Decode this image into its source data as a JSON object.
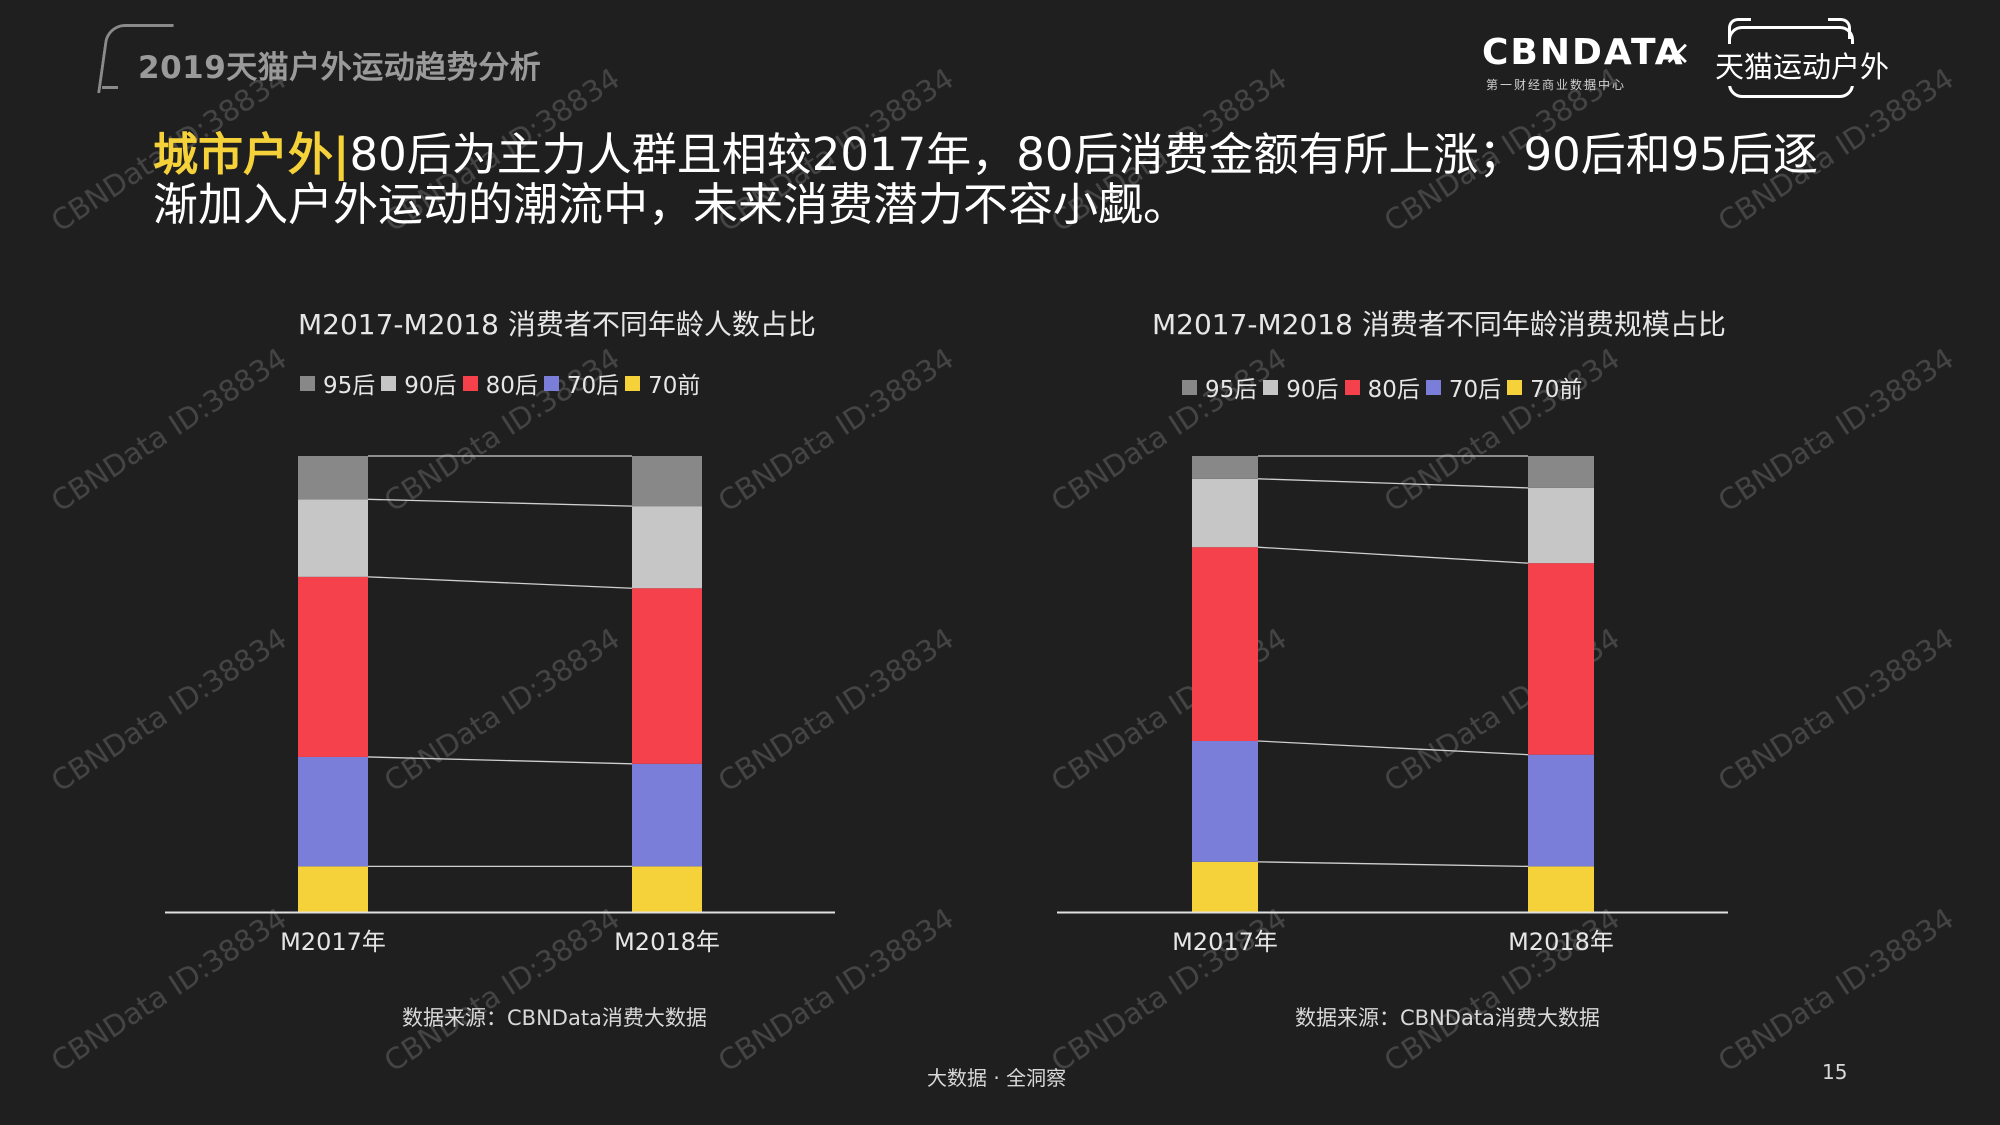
{
  "header": {
    "report_title": "2019天猫户外运动趋势分析",
    "brand_cbn": "CBNDATA",
    "brand_cbn_sub": "第一财经商业数据中心",
    "brand_x": "×",
    "brand_tmall": "天猫运动户外"
  },
  "headline": {
    "highlight": "城市户外",
    "separator": "|",
    "text": "80后为主力人群且相较2017年，80后消费金额有所上涨；90后和95后逐渐加入户外运动的潮流中，未来消费潜力不容小觑。"
  },
  "colors": {
    "95后": "#888888",
    "90后": "#c6c6c6",
    "80后": "#f5414c",
    "70后": "#7a7ed8",
    "70前": "#f6d23a"
  },
  "chart_data": [
    {
      "type": "bar",
      "stacked": true,
      "title": "M2017-M2018 消费者不同年龄人数占比",
      "categories": [
        "M2017年",
        "M2018年"
      ],
      "legend": [
        "95后",
        "90后",
        "80后",
        "70后",
        "70前"
      ],
      "ylim": [
        0,
        100
      ],
      "series": [
        {
          "name": "70前",
          "values": [
            10,
            10
          ]
        },
        {
          "name": "70后",
          "values": [
            24,
            22.5
          ]
        },
        {
          "name": "80后",
          "values": [
            39.5,
            38.5
          ]
        },
        {
          "name": "90后",
          "values": [
            17,
            18
          ]
        },
        {
          "name": "95后",
          "values": [
            9.5,
            11
          ]
        }
      ],
      "source": "数据来源：CBNData消费大数据"
    },
    {
      "type": "bar",
      "stacked": true,
      "title": "M2017-M2018 消费者不同年龄消费规模占比",
      "categories": [
        "M2017年",
        "M2018年"
      ],
      "legend": [
        "95后",
        "90后",
        "80后",
        "70后",
        "70前"
      ],
      "ylim": [
        0,
        100
      ],
      "series": [
        {
          "name": "70前",
          "values": [
            11,
            10
          ]
        },
        {
          "name": "70后",
          "values": [
            26.5,
            24.5
          ]
        },
        {
          "name": "80后",
          "values": [
            42.5,
            42
          ]
        },
        {
          "name": "90后",
          "values": [
            15,
            16.5
          ]
        },
        {
          "name": "95后",
          "values": [
            5,
            7
          ]
        }
      ],
      "source": "数据来源：CBNData消费大数据"
    }
  ],
  "watermark": "CBNData ID:38834",
  "footer": {
    "tagline": "大数据 · 全洞察",
    "page": "15"
  }
}
